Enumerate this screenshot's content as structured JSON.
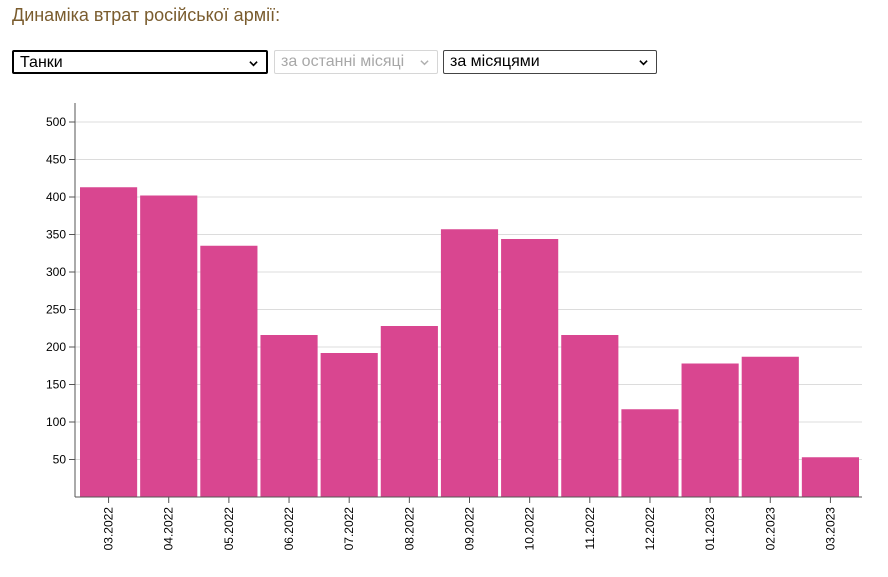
{
  "page": {
    "title": "Динаміка втрат російської армії:"
  },
  "controls": {
    "category": {
      "value": "Танки"
    },
    "period": {
      "value": "за останні місяці"
    },
    "grouping": {
      "value": "за місяцями"
    }
  },
  "colors": {
    "bar": "#d94690",
    "grid": "#dcdcdc",
    "axis": "#555555"
  },
  "chart_data": {
    "type": "bar",
    "categories": [
      "03.2022",
      "04.2022",
      "05.2022",
      "06.2022",
      "07.2022",
      "08.2022",
      "09.2022",
      "10.2022",
      "11.2022",
      "12.2022",
      "01.2023",
      "02.2023",
      "03.2023"
    ],
    "values": [
      413,
      402,
      335,
      216,
      192,
      228,
      357,
      344,
      216,
      117,
      178,
      187,
      53
    ],
    "yticks": [
      50,
      100,
      150,
      200,
      250,
      300,
      350,
      400,
      450,
      500
    ],
    "ylim": [
      0,
      500
    ],
    "grid": true,
    "xlabel": "",
    "ylabel": ""
  }
}
